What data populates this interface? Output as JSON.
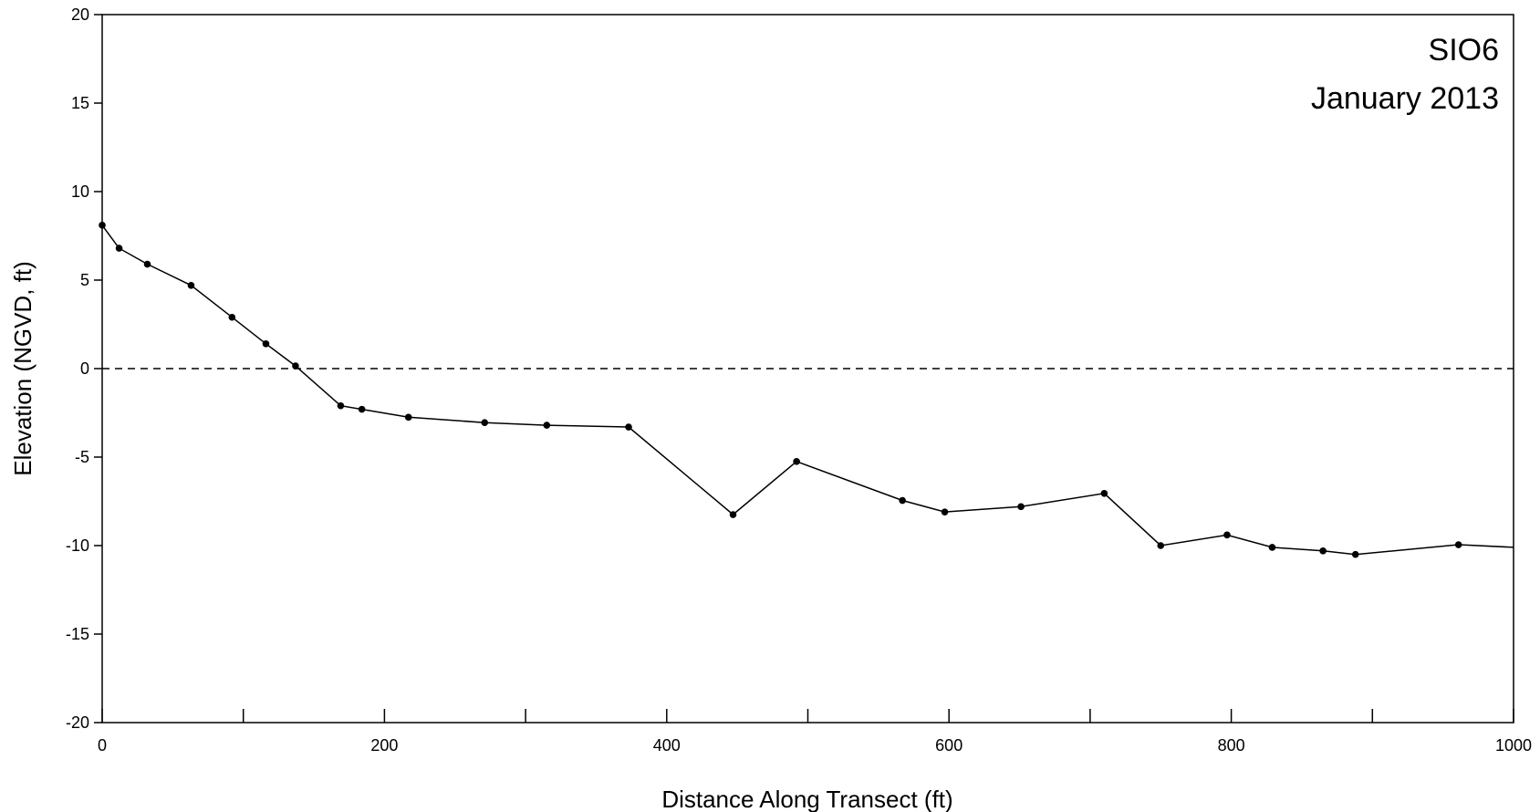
{
  "chart_data": {
    "type": "line",
    "xlabel": "Distance Along Transect (ft)",
    "ylabel": "Elevation (NGVD, ft)",
    "xlim": [
      0,
      1000
    ],
    "ylim": [
      -20,
      20
    ],
    "x_ticks_major": [
      0,
      200,
      400,
      600,
      800,
      1000
    ],
    "x_ticks_minor": [
      100,
      300,
      500,
      700,
      900
    ],
    "y_ticks": [
      -20,
      -15,
      -10,
      -5,
      0,
      5,
      10,
      15,
      20
    ],
    "annotations": [
      "SIO6",
      "January 2013"
    ],
    "reference_line": {
      "y": 0,
      "style": "dashed"
    },
    "grid": false,
    "legend": "none",
    "series": [
      {
        "markers": true,
        "points": [
          [
            0,
            8.1
          ],
          [
            12,
            6.8
          ],
          [
            32,
            5.9
          ],
          [
            63,
            4.7
          ],
          [
            92,
            2.9
          ],
          [
            116,
            1.4
          ],
          [
            137,
            0.15
          ],
          [
            169,
            -2.1
          ],
          [
            184,
            -2.3
          ],
          [
            217,
            -2.75
          ],
          [
            271,
            -3.05
          ],
          [
            315,
            -3.2
          ],
          [
            373,
            -3.3
          ],
          [
            447,
            -8.25
          ],
          [
            492,
            -5.25
          ],
          [
            567,
            -7.45
          ],
          [
            597,
            -8.1
          ],
          [
            651,
            -7.8
          ],
          [
            710,
            -7.05
          ],
          [
            750,
            -10.0
          ],
          [
            797,
            -9.4
          ],
          [
            829,
            -10.1
          ],
          [
            865,
            -10.3
          ],
          [
            888,
            -10.5
          ],
          [
            961,
            -9.95
          ],
          [
            1000,
            -10.1
          ]
        ]
      }
    ]
  }
}
